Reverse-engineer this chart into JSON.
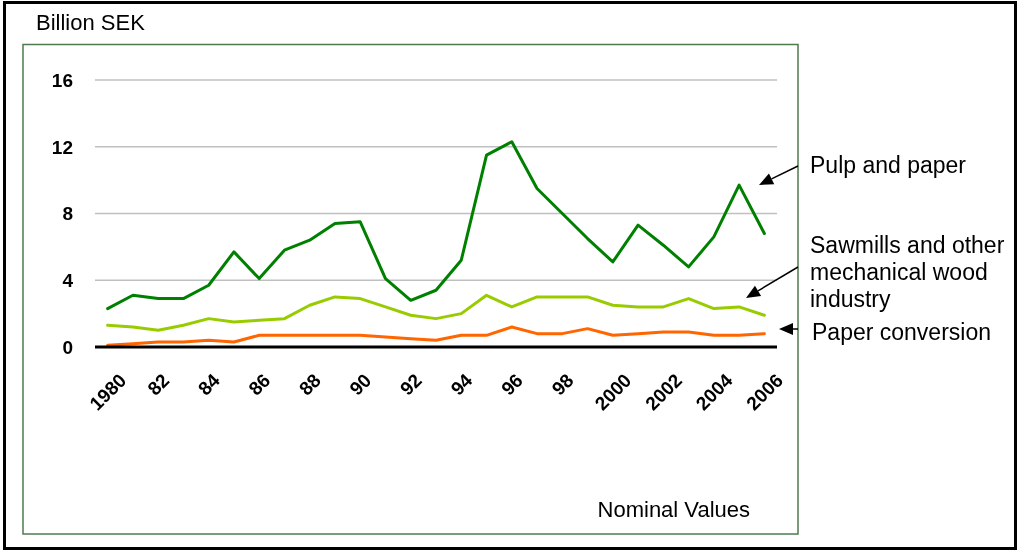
{
  "chart_data": {
    "type": "line",
    "ylabel": "Billion SEK",
    "annotations": [
      "Nominal Values"
    ],
    "categories": [
      "1980",
      null,
      "82",
      null,
      "84",
      null,
      "86",
      null,
      "88",
      null,
      "90",
      null,
      "92",
      null,
      "94",
      null,
      "96",
      null,
      "98",
      null,
      "2000",
      null,
      "2002",
      null,
      "2004",
      null,
      "2006"
    ],
    "series": [
      {
        "name": "Pulp and paper",
        "color": "#008000",
        "values": [
          2.3,
          3.1,
          2.9,
          2.9,
          3.7,
          5.7,
          4.1,
          5.8,
          6.4,
          7.4,
          7.5,
          4.1,
          2.8,
          3.4,
          5.2,
          11.5,
          12.3,
          9.5,
          8.0,
          6.5,
          5.1,
          7.3,
          6.1,
          4.8,
          6.6,
          9.7,
          6.8
        ]
      },
      {
        "name": "Sawmills and other mechanical wood industry",
        "color": "#99cc00",
        "values": [
          1.3,
          1.2,
          1.0,
          1.3,
          1.7,
          1.5,
          1.6,
          1.7,
          2.5,
          3.0,
          2.9,
          2.4,
          1.9,
          1.7,
          2.0,
          3.1,
          2.4,
          3.0,
          3.0,
          3.0,
          2.5,
          2.4,
          2.4,
          2.9,
          2.3,
          2.4,
          1.9
        ]
      },
      {
        "name": "Paper conversion",
        "color": "#ff6600",
        "values": [
          0.1,
          0.2,
          0.3,
          0.3,
          0.4,
          0.3,
          0.7,
          0.7,
          0.7,
          0.7,
          0.7,
          0.6,
          0.5,
          0.4,
          0.7,
          0.7,
          1.2,
          0.8,
          0.8,
          1.1,
          0.7,
          0.8,
          0.9,
          0.9,
          0.7,
          0.7,
          0.8
        ]
      }
    ],
    "ylim": [
      0,
      16
    ],
    "yticks": [
      0,
      4,
      8,
      12,
      16
    ],
    "grid": "y"
  }
}
